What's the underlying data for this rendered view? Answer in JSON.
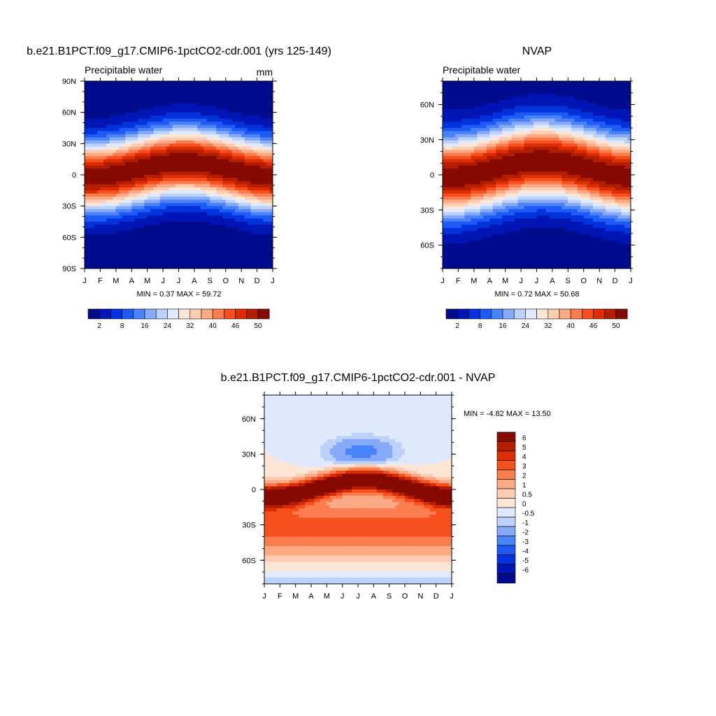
{
  "chart_data": [
    {
      "type": "heatmap",
      "title": "b.e21.B1PCT.f09_g17.CMIP6-1pctCO2-cdr.001 (yrs 125-149)",
      "subtitle": "Precipitable water",
      "units": "mm",
      "x_ticks": [
        "J",
        "F",
        "M",
        "A",
        "M",
        "J",
        "J",
        "A",
        "S",
        "O",
        "N",
        "D",
        "J"
      ],
      "y_ticks": [
        "90N",
        "60N",
        "30N",
        "0",
        "30S",
        "60S",
        "90S"
      ],
      "y_range": [
        -90,
        90
      ],
      "stats": "MIN =   0.37 MAX =  59.72",
      "colorbar": {
        "orientation": "horizontal",
        "labels": [
          "2",
          "8",
          "16",
          "24",
          "32",
          "40",
          "46",
          "50"
        ],
        "colors": [
          "#000a8c",
          "#0016b4",
          "#0232dc",
          "#1e5af5",
          "#4a82f8",
          "#86aaf8",
          "#bcd2fa",
          "#dfeafe",
          "#fde6d6",
          "#fdcdb2",
          "#fcaa86",
          "#fa7d50",
          "#f5501e",
          "#dc2d05",
          "#b41e00",
          "#870a00"
        ]
      },
      "max_val": 58
    },
    {
      "type": "heatmap",
      "title": "NVAP",
      "subtitle": "Precipitable water",
      "x_ticks": [
        "J",
        "F",
        "M",
        "A",
        "M",
        "J",
        "J",
        "A",
        "S",
        "O",
        "N",
        "D",
        "J"
      ],
      "y_ticks": [
        "60N",
        "30N",
        "0",
        "30S",
        "60S"
      ],
      "y_range": [
        -80,
        80
      ],
      "stats": "MIN =   0.72 MAX =  50.68",
      "colorbar": {
        "orientation": "horizontal",
        "labels": [
          "2",
          "8",
          "16",
          "24",
          "32",
          "40",
          "46",
          "50"
        ],
        "colors": [
          "#000a8c",
          "#0016b4",
          "#0232dc",
          "#1e5af5",
          "#4a82f8",
          "#86aaf8",
          "#bcd2fa",
          "#dfeafe",
          "#fde6d6",
          "#fdcdb2",
          "#fcaa86",
          "#fa7d50",
          "#f5501e",
          "#dc2d05",
          "#b41e00",
          "#870a00"
        ]
      },
      "max_val": 49
    },
    {
      "type": "heatmap",
      "title": "b.e21.B1PCT.f09_g17.CMIP6-1pctCO2-cdr.001 - NVAP",
      "x_ticks": [
        "J",
        "F",
        "M",
        "A",
        "M",
        "J",
        "J",
        "A",
        "S",
        "O",
        "N",
        "D",
        "J"
      ],
      "y_ticks": [
        "60N",
        "30N",
        "0",
        "30S",
        "60S"
      ],
      "y_range": [
        -80,
        80
      ],
      "stats": "MIN =  -4.82 MAX =  13.50",
      "colorbar": {
        "orientation": "vertical",
        "labels": [
          "6",
          "5",
          "4",
          "3",
          "2",
          "1",
          "0.5",
          "0",
          "-0.5",
          "-1",
          "-2",
          "-3",
          "-4",
          "-5",
          "-6"
        ],
        "colors": [
          "#870a00",
          "#b41e00",
          "#dc2d05",
          "#f5501e",
          "#fa7d50",
          "#fcaa86",
          "#fdcdb2",
          "#fde6d6",
          "#dfeafe",
          "#bcd2fa",
          "#86aaf8",
          "#4a82f8",
          "#1e5af5",
          "#0232dc",
          "#0016b4",
          "#000a8c"
        ]
      }
    }
  ]
}
